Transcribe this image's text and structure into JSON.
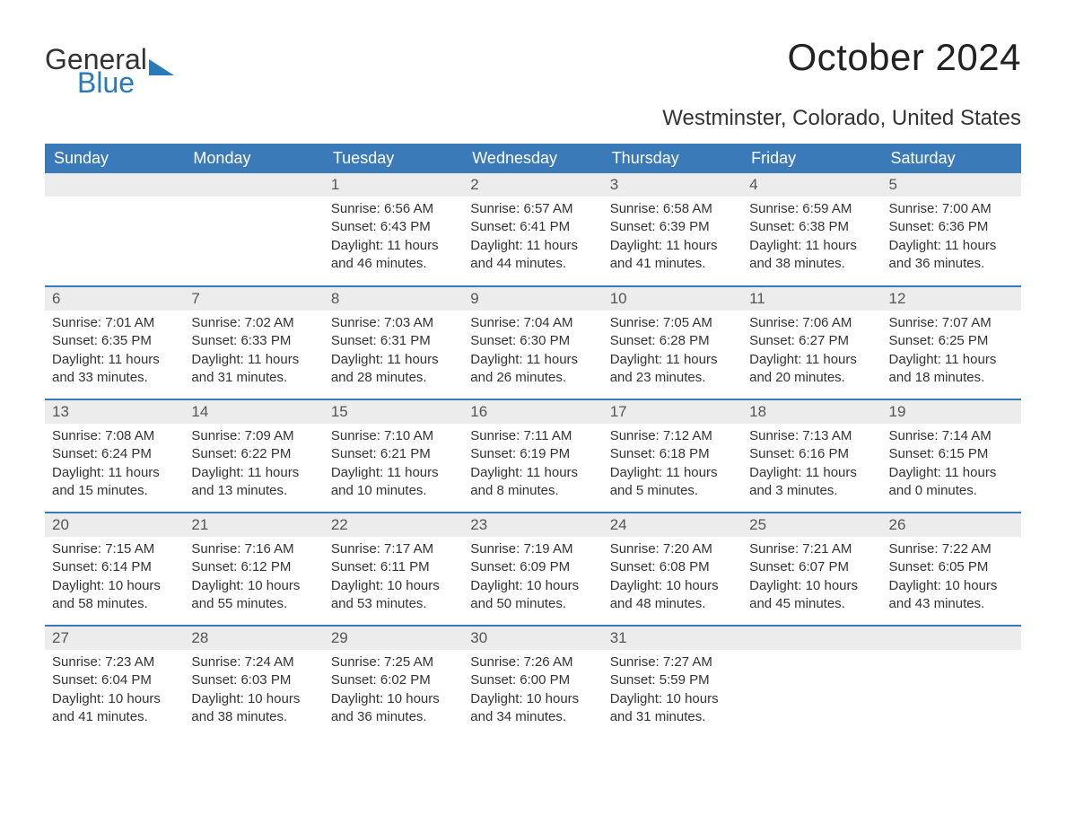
{
  "brand": {
    "general": "General",
    "blue": "Blue"
  },
  "title": "October 2024",
  "location": "Westminster, Colorado, United States",
  "colors": {
    "header_bg": "#3a7ab8",
    "header_text": "#ffffff",
    "daynum_bg": "#ececec",
    "daynum_text": "#555555",
    "body_text": "#333333",
    "row_border": "#3a7ab8",
    "page_bg": "#ffffff",
    "logo_blue": "#2a7ab9"
  },
  "typography": {
    "title_fontsize_pt": 32,
    "location_fontsize_pt": 18,
    "header_fontsize_pt": 14,
    "daynum_fontsize_pt": 13,
    "body_fontsize_pt": 11
  },
  "weekdays": [
    "Sunday",
    "Monday",
    "Tuesday",
    "Wednesday",
    "Thursday",
    "Friday",
    "Saturday"
  ],
  "weeks": [
    [
      null,
      null,
      {
        "n": "1",
        "sr": "Sunrise: 6:56 AM",
        "ss": "Sunset: 6:43 PM",
        "d1": "Daylight: 11 hours",
        "d2": "and 46 minutes."
      },
      {
        "n": "2",
        "sr": "Sunrise: 6:57 AM",
        "ss": "Sunset: 6:41 PM",
        "d1": "Daylight: 11 hours",
        "d2": "and 44 minutes."
      },
      {
        "n": "3",
        "sr": "Sunrise: 6:58 AM",
        "ss": "Sunset: 6:39 PM",
        "d1": "Daylight: 11 hours",
        "d2": "and 41 minutes."
      },
      {
        "n": "4",
        "sr": "Sunrise: 6:59 AM",
        "ss": "Sunset: 6:38 PM",
        "d1": "Daylight: 11 hours",
        "d2": "and 38 minutes."
      },
      {
        "n": "5",
        "sr": "Sunrise: 7:00 AM",
        "ss": "Sunset: 6:36 PM",
        "d1": "Daylight: 11 hours",
        "d2": "and 36 minutes."
      }
    ],
    [
      {
        "n": "6",
        "sr": "Sunrise: 7:01 AM",
        "ss": "Sunset: 6:35 PM",
        "d1": "Daylight: 11 hours",
        "d2": "and 33 minutes."
      },
      {
        "n": "7",
        "sr": "Sunrise: 7:02 AM",
        "ss": "Sunset: 6:33 PM",
        "d1": "Daylight: 11 hours",
        "d2": "and 31 minutes."
      },
      {
        "n": "8",
        "sr": "Sunrise: 7:03 AM",
        "ss": "Sunset: 6:31 PM",
        "d1": "Daylight: 11 hours",
        "d2": "and 28 minutes."
      },
      {
        "n": "9",
        "sr": "Sunrise: 7:04 AM",
        "ss": "Sunset: 6:30 PM",
        "d1": "Daylight: 11 hours",
        "d2": "and 26 minutes."
      },
      {
        "n": "10",
        "sr": "Sunrise: 7:05 AM",
        "ss": "Sunset: 6:28 PM",
        "d1": "Daylight: 11 hours",
        "d2": "and 23 minutes."
      },
      {
        "n": "11",
        "sr": "Sunrise: 7:06 AM",
        "ss": "Sunset: 6:27 PM",
        "d1": "Daylight: 11 hours",
        "d2": "and 20 minutes."
      },
      {
        "n": "12",
        "sr": "Sunrise: 7:07 AM",
        "ss": "Sunset: 6:25 PM",
        "d1": "Daylight: 11 hours",
        "d2": "and 18 minutes."
      }
    ],
    [
      {
        "n": "13",
        "sr": "Sunrise: 7:08 AM",
        "ss": "Sunset: 6:24 PM",
        "d1": "Daylight: 11 hours",
        "d2": "and 15 minutes."
      },
      {
        "n": "14",
        "sr": "Sunrise: 7:09 AM",
        "ss": "Sunset: 6:22 PM",
        "d1": "Daylight: 11 hours",
        "d2": "and 13 minutes."
      },
      {
        "n": "15",
        "sr": "Sunrise: 7:10 AM",
        "ss": "Sunset: 6:21 PM",
        "d1": "Daylight: 11 hours",
        "d2": "and 10 minutes."
      },
      {
        "n": "16",
        "sr": "Sunrise: 7:11 AM",
        "ss": "Sunset: 6:19 PM",
        "d1": "Daylight: 11 hours",
        "d2": "and 8 minutes."
      },
      {
        "n": "17",
        "sr": "Sunrise: 7:12 AM",
        "ss": "Sunset: 6:18 PM",
        "d1": "Daylight: 11 hours",
        "d2": "and 5 minutes."
      },
      {
        "n": "18",
        "sr": "Sunrise: 7:13 AM",
        "ss": "Sunset: 6:16 PM",
        "d1": "Daylight: 11 hours",
        "d2": "and 3 minutes."
      },
      {
        "n": "19",
        "sr": "Sunrise: 7:14 AM",
        "ss": "Sunset: 6:15 PM",
        "d1": "Daylight: 11 hours",
        "d2": "and 0 minutes."
      }
    ],
    [
      {
        "n": "20",
        "sr": "Sunrise: 7:15 AM",
        "ss": "Sunset: 6:14 PM",
        "d1": "Daylight: 10 hours",
        "d2": "and 58 minutes."
      },
      {
        "n": "21",
        "sr": "Sunrise: 7:16 AM",
        "ss": "Sunset: 6:12 PM",
        "d1": "Daylight: 10 hours",
        "d2": "and 55 minutes."
      },
      {
        "n": "22",
        "sr": "Sunrise: 7:17 AM",
        "ss": "Sunset: 6:11 PM",
        "d1": "Daylight: 10 hours",
        "d2": "and 53 minutes."
      },
      {
        "n": "23",
        "sr": "Sunrise: 7:19 AM",
        "ss": "Sunset: 6:09 PM",
        "d1": "Daylight: 10 hours",
        "d2": "and 50 minutes."
      },
      {
        "n": "24",
        "sr": "Sunrise: 7:20 AM",
        "ss": "Sunset: 6:08 PM",
        "d1": "Daylight: 10 hours",
        "d2": "and 48 minutes."
      },
      {
        "n": "25",
        "sr": "Sunrise: 7:21 AM",
        "ss": "Sunset: 6:07 PM",
        "d1": "Daylight: 10 hours",
        "d2": "and 45 minutes."
      },
      {
        "n": "26",
        "sr": "Sunrise: 7:22 AM",
        "ss": "Sunset: 6:05 PM",
        "d1": "Daylight: 10 hours",
        "d2": "and 43 minutes."
      }
    ],
    [
      {
        "n": "27",
        "sr": "Sunrise: 7:23 AM",
        "ss": "Sunset: 6:04 PM",
        "d1": "Daylight: 10 hours",
        "d2": "and 41 minutes."
      },
      {
        "n": "28",
        "sr": "Sunrise: 7:24 AM",
        "ss": "Sunset: 6:03 PM",
        "d1": "Daylight: 10 hours",
        "d2": "and 38 minutes."
      },
      {
        "n": "29",
        "sr": "Sunrise: 7:25 AM",
        "ss": "Sunset: 6:02 PM",
        "d1": "Daylight: 10 hours",
        "d2": "and 36 minutes."
      },
      {
        "n": "30",
        "sr": "Sunrise: 7:26 AM",
        "ss": "Sunset: 6:00 PM",
        "d1": "Daylight: 10 hours",
        "d2": "and 34 minutes."
      },
      {
        "n": "31",
        "sr": "Sunrise: 7:27 AM",
        "ss": "Sunset: 5:59 PM",
        "d1": "Daylight: 10 hours",
        "d2": "and 31 minutes."
      },
      null,
      null
    ]
  ]
}
